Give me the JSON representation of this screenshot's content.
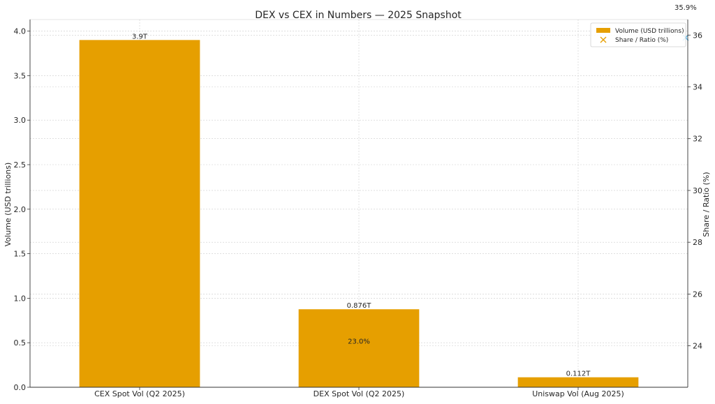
{
  "chart_data": {
    "type": "bar",
    "title": "DEX vs CEX in Numbers — 2025 Snapshot",
    "categories": [
      "CEX Spot Vol (Q2 2025)",
      "DEX Spot Vol (Q2 2025)",
      "Uniswap Vol (Aug 2025)"
    ],
    "series": [
      {
        "name": "Volume (USD trillions)",
        "axis": "left",
        "mark": "bar",
        "color": "#e69f00",
        "values": [
          3.9,
          0.876,
          0.112
        ],
        "labels": [
          "3.9T",
          "0.876T",
          "0.112T"
        ]
      },
      {
        "name": "Share / Ratio (%)",
        "axis": "right",
        "mark": "x",
        "color": "#e69f00",
        "points": [
          {
            "category": "DEX Spot Vol (Q2 2025)",
            "value": 23.0,
            "label": "23.0%"
          },
          {
            "category": "Uniswap Vol (Aug 2025)",
            "value": 35.9,
            "label": "35.9%"
          }
        ]
      }
    ],
    "ylabel": "Volume (USD trillions)",
    "ylim": [
      0,
      4.13
    ],
    "yticks": [
      0.0,
      0.5,
      1.0,
      1.5,
      2.0,
      2.5,
      3.0,
      3.5,
      4.0
    ],
    "ytick_labels": [
      "0.0",
      "0.5",
      "1.0",
      "1.5",
      "2.0",
      "2.5",
      "3.0",
      "3.5",
      "4.0"
    ],
    "y2label": "Share / Ratio (%)",
    "y2lim": [
      22.4,
      36.6
    ],
    "y2ticks": [
      24,
      26,
      28,
      30,
      32,
      34,
      36
    ],
    "y2tick_labels": [
      "24",
      "26",
      "28",
      "30",
      "32",
      "34",
      "36"
    ],
    "grid": true,
    "legend": {
      "position": "top-right",
      "entries": [
        "Volume (USD trillions)",
        "Share / Ratio (%)"
      ]
    },
    "marker_colors": {
      "bar": "#e69f00",
      "x_marker": "#e69f00",
      "x_marker_alt": "#56b4e9"
    }
  }
}
